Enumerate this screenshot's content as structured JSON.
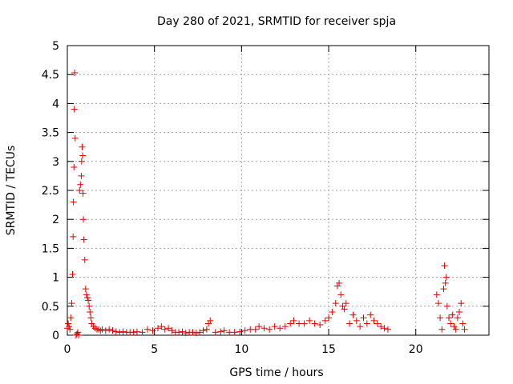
{
  "chart_data": {
    "type": "scatter",
    "title": "Day 280 of 2021, SRMTID for receiver spja",
    "xlabel": "GPS time / hours",
    "ylabel": "SRMTID / TECUs",
    "xlim": [
      0,
      24.2
    ],
    "ylim": [
      0,
      5
    ],
    "xticks": [
      0,
      5,
      10,
      15,
      20
    ],
    "xtick_labels": [
      "0",
      "5",
      "10",
      "15",
      "20"
    ],
    "yticks": [
      0,
      0.5,
      1,
      1.5,
      2,
      2.5,
      3,
      3.5,
      4,
      4.5,
      5
    ],
    "ytick_labels": [
      "0",
      "0.5",
      "1",
      "1.5",
      "2",
      "2.5",
      "3",
      "3.5",
      "4",
      "4.5",
      "5"
    ],
    "grid": true,
    "marker": "plus",
    "color": "#e00000",
    "series": [
      {
        "name": "SRMTID",
        "x": [
          0.0,
          0.05,
          0.1,
          0.15,
          0.2,
          0.25,
          0.3,
          0.33,
          0.35,
          0.38,
          0.4,
          0.42,
          0.45,
          0.5,
          0.55,
          0.6,
          0.65,
          0.7,
          0.75,
          0.8,
          0.82,
          0.85,
          0.88,
          0.9,
          0.92,
          0.95,
          1.0,
          1.05,
          1.1,
          1.15,
          1.2,
          1.25,
          1.3,
          1.35,
          1.4,
          1.5,
          1.6,
          1.7,
          1.8,
          1.9,
          2.0,
          2.2,
          2.4,
          2.6,
          2.8,
          3.0,
          3.2,
          3.4,
          3.6,
          3.8,
          4.0,
          4.3,
          4.6,
          4.9,
          5.2,
          5.4,
          5.6,
          5.8,
          6.0,
          6.2,
          6.4,
          6.6,
          6.8,
          7.0,
          7.2,
          7.4,
          7.6,
          7.8,
          8.0,
          8.1,
          8.2,
          8.5,
          8.8,
          9.0,
          9.3,
          9.6,
          9.9,
          10.2,
          10.5,
          10.8,
          11.0,
          11.3,
          11.6,
          11.9,
          12.2,
          12.5,
          12.8,
          13.0,
          13.3,
          13.6,
          13.9,
          14.2,
          14.5,
          14.8,
          15.0,
          15.2,
          15.4,
          15.5,
          15.6,
          15.7,
          15.8,
          15.9,
          16.0,
          16.2,
          16.4,
          16.6,
          16.8,
          17.0,
          17.2,
          17.4,
          17.6,
          17.8,
          18.0,
          18.2,
          18.4,
          21.2,
          21.3,
          21.4,
          21.5,
          21.6,
          21.65,
          21.7,
          21.75,
          21.8,
          21.9,
          22.0,
          22.1,
          22.2,
          22.3,
          22.4,
          22.5,
          22.6,
          22.7,
          22.8
        ],
        "y": [
          0.12,
          0.2,
          0.15,
          0.1,
          0.3,
          0.55,
          1.05,
          1.7,
          2.3,
          2.9,
          3.9,
          4.53,
          3.4,
          0.0,
          0.02,
          0.05,
          0.0,
          2.5,
          2.6,
          2.75,
          3.0,
          3.25,
          3.1,
          2.45,
          2.0,
          1.65,
          1.3,
          0.8,
          0.7,
          0.65,
          0.6,
          0.5,
          0.4,
          0.3,
          0.2,
          0.15,
          0.12,
          0.1,
          0.1,
          0.08,
          0.1,
          0.08,
          0.1,
          0.08,
          0.06,
          0.05,
          0.06,
          0.05,
          0.05,
          0.05,
          0.06,
          0.05,
          0.1,
          0.08,
          0.12,
          0.15,
          0.1,
          0.12,
          0.08,
          0.05,
          0.05,
          0.06,
          0.04,
          0.05,
          0.05,
          0.04,
          0.05,
          0.08,
          0.1,
          0.2,
          0.25,
          0.05,
          0.06,
          0.08,
          0.05,
          0.05,
          0.06,
          0.08,
          0.1,
          0.1,
          0.15,
          0.12,
          0.1,
          0.15,
          0.12,
          0.15,
          0.2,
          0.25,
          0.2,
          0.2,
          0.25,
          0.2,
          0.18,
          0.25,
          0.3,
          0.4,
          0.55,
          0.85,
          0.9,
          0.7,
          0.5,
          0.45,
          0.55,
          0.2,
          0.35,
          0.25,
          0.15,
          0.3,
          0.2,
          0.35,
          0.25,
          0.2,
          0.15,
          0.12,
          0.1,
          0.7,
          0.55,
          0.3,
          0.1,
          0.8,
          1.2,
          0.9,
          1.0,
          0.5,
          0.3,
          0.2,
          0.35,
          0.15,
          0.1,
          0.3,
          0.4,
          0.55,
          0.2,
          0.1
        ]
      }
    ]
  }
}
